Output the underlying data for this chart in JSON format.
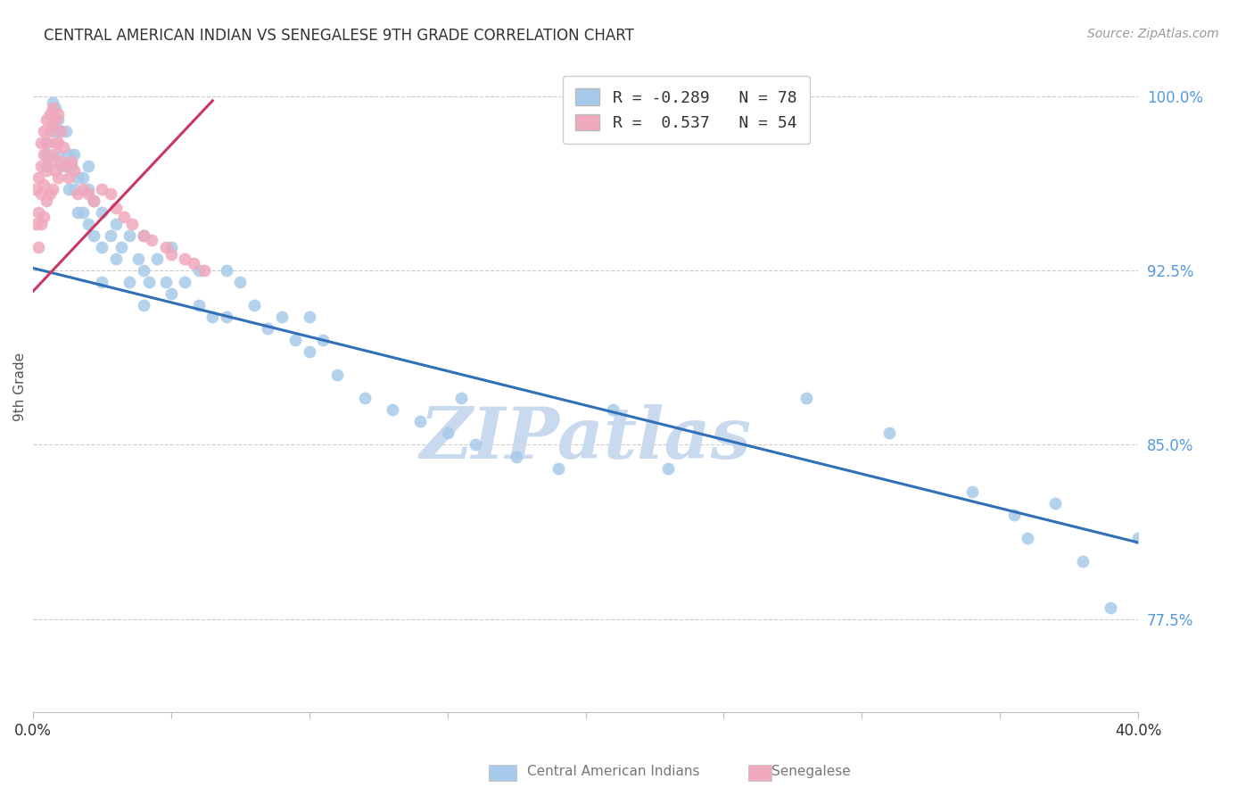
{
  "title": "CENTRAL AMERICAN INDIAN VS SENEGALESE 9TH GRADE CORRELATION CHART",
  "source": "Source: ZipAtlas.com",
  "ylabel": "9th Grade",
  "right_ytick_labels": [
    "100.0%",
    "92.5%",
    "85.0%",
    "77.5%"
  ],
  "right_ytick_vals": [
    1.0,
    0.925,
    0.85,
    0.775
  ],
  "legend_blue_r": "-0.289",
  "legend_blue_n": "78",
  "legend_pink_r": "0.537",
  "legend_pink_n": "54",
  "xmin": 0.0,
  "xmax": 0.4,
  "ymin": 0.735,
  "ymax": 1.015,
  "blue_trend_x": [
    0.0,
    0.4
  ],
  "blue_trend_y": [
    0.926,
    0.808
  ],
  "pink_trend_x": [
    0.0,
    0.065
  ],
  "pink_trend_y": [
    0.916,
    0.998
  ],
  "blue_scatter_x": [
    0.005,
    0.005,
    0.005,
    0.007,
    0.008,
    0.008,
    0.009,
    0.009,
    0.01,
    0.01,
    0.012,
    0.012,
    0.013,
    0.013,
    0.014,
    0.015,
    0.015,
    0.016,
    0.016,
    0.018,
    0.018,
    0.02,
    0.02,
    0.02,
    0.022,
    0.022,
    0.025,
    0.025,
    0.025,
    0.028,
    0.03,
    0.03,
    0.032,
    0.035,
    0.035,
    0.038,
    0.04,
    0.04,
    0.04,
    0.042,
    0.045,
    0.048,
    0.05,
    0.05,
    0.055,
    0.06,
    0.06,
    0.065,
    0.07,
    0.07,
    0.075,
    0.08,
    0.085,
    0.09,
    0.095,
    0.1,
    0.1,
    0.105,
    0.11,
    0.12,
    0.13,
    0.14,
    0.15,
    0.155,
    0.16,
    0.175,
    0.19,
    0.21,
    0.23,
    0.28,
    0.31,
    0.34,
    0.355,
    0.36,
    0.37,
    0.38,
    0.39,
    0.4
  ],
  "blue_scatter_y": [
    0.98,
    0.975,
    0.97,
    0.997,
    0.995,
    0.985,
    0.99,
    0.975,
    0.985,
    0.97,
    0.985,
    0.97,
    0.975,
    0.96,
    0.97,
    0.975,
    0.96,
    0.965,
    0.95,
    0.965,
    0.95,
    0.97,
    0.96,
    0.945,
    0.955,
    0.94,
    0.95,
    0.935,
    0.92,
    0.94,
    0.945,
    0.93,
    0.935,
    0.94,
    0.92,
    0.93,
    0.94,
    0.925,
    0.91,
    0.92,
    0.93,
    0.92,
    0.935,
    0.915,
    0.92,
    0.925,
    0.91,
    0.905,
    0.925,
    0.905,
    0.92,
    0.91,
    0.9,
    0.905,
    0.895,
    0.905,
    0.89,
    0.895,
    0.88,
    0.87,
    0.865,
    0.86,
    0.855,
    0.87,
    0.85,
    0.845,
    0.84,
    0.865,
    0.84,
    0.87,
    0.855,
    0.83,
    0.82,
    0.81,
    0.825,
    0.8,
    0.78,
    0.81
  ],
  "pink_scatter_x": [
    0.001,
    0.001,
    0.002,
    0.002,
    0.002,
    0.003,
    0.003,
    0.003,
    0.003,
    0.004,
    0.004,
    0.004,
    0.004,
    0.005,
    0.005,
    0.005,
    0.005,
    0.006,
    0.006,
    0.006,
    0.006,
    0.007,
    0.007,
    0.007,
    0.007,
    0.008,
    0.008,
    0.008,
    0.009,
    0.009,
    0.009,
    0.01,
    0.01,
    0.011,
    0.012,
    0.013,
    0.014,
    0.015,
    0.016,
    0.018,
    0.02,
    0.022,
    0.025,
    0.028,
    0.03,
    0.033,
    0.036,
    0.04,
    0.043,
    0.048,
    0.05,
    0.055,
    0.058,
    0.062
  ],
  "pink_scatter_y": [
    0.96,
    0.945,
    0.965,
    0.95,
    0.935,
    0.98,
    0.97,
    0.958,
    0.945,
    0.985,
    0.975,
    0.962,
    0.948,
    0.99,
    0.98,
    0.968,
    0.955,
    0.992,
    0.985,
    0.972,
    0.958,
    0.995,
    0.988,
    0.975,
    0.96,
    0.99,
    0.98,
    0.968,
    0.992,
    0.98,
    0.965,
    0.985,
    0.972,
    0.978,
    0.97,
    0.965,
    0.972,
    0.968,
    0.958,
    0.96,
    0.958,
    0.955,
    0.96,
    0.958,
    0.952,
    0.948,
    0.945,
    0.94,
    0.938,
    0.935,
    0.932,
    0.93,
    0.928,
    0.925
  ],
  "watermark": "ZIPatlas",
  "background_color": "#ffffff",
  "blue_color": "#A8CAEA",
  "pink_color": "#F0A8BC",
  "blue_line_color": "#3070B8",
  "pink_line_color": "#C83860",
  "grid_color": "#CCCCCC",
  "title_color": "#333333",
  "right_axis_color": "#5599DD",
  "watermark_color": "#CADAEE"
}
